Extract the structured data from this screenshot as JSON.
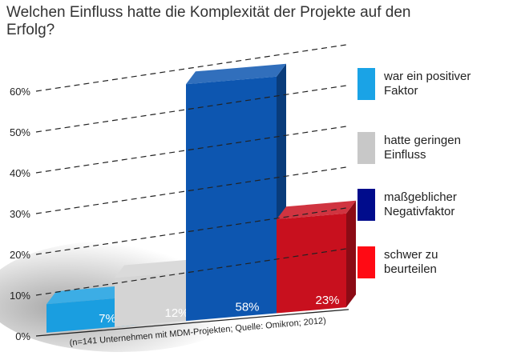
{
  "title": "Welchen Einfluss hatte die Komplexität der Projekte auf den Erfolg?",
  "note": "(n=141 Unternehmen mit MDM-Projekten; Quelle: Omikron; 2012)",
  "chart_data": {
    "type": "bar",
    "title": "Welchen Einfluss hatte die Komplexität der Projekte auf den Erfolg?",
    "categories": [
      "war ein positiver Faktor",
      "hatte geringen Einfluss",
      "maßgeblicher Negativfaktor",
      "schwer zu beurteilen"
    ],
    "values": [
      7,
      12,
      58,
      23
    ],
    "value_labels": [
      "7%",
      "12%",
      "58%",
      "23%"
    ],
    "colors": [
      "#1a9ee0",
      "#d4d4d4",
      "#0d56b0",
      "#c8101e"
    ],
    "ylim": [
      0,
      60
    ],
    "yticks": [
      0,
      10,
      20,
      30,
      40,
      50,
      60
    ],
    "ytick_labels": [
      "0%",
      "10%",
      "20%",
      "30%",
      "40%",
      "50%",
      "60%"
    ],
    "grid": true,
    "legend_placement": "right",
    "xlabel": "",
    "ylabel": ""
  },
  "legend": [
    {
      "lines": [
        "war ein positiver",
        "Faktor"
      ],
      "color": "#1aa3e6"
    },
    {
      "lines": [
        "hatte geringen",
        "Einfluss"
      ],
      "color": "#c8c8c8"
    },
    {
      "lines": [
        "maßgeblicher",
        "Negativfaktor"
      ],
      "color": "#000c8c"
    },
    {
      "lines": [
        "schwer zu",
        "beurteilen"
      ],
      "color": "#ff0a14"
    }
  ]
}
